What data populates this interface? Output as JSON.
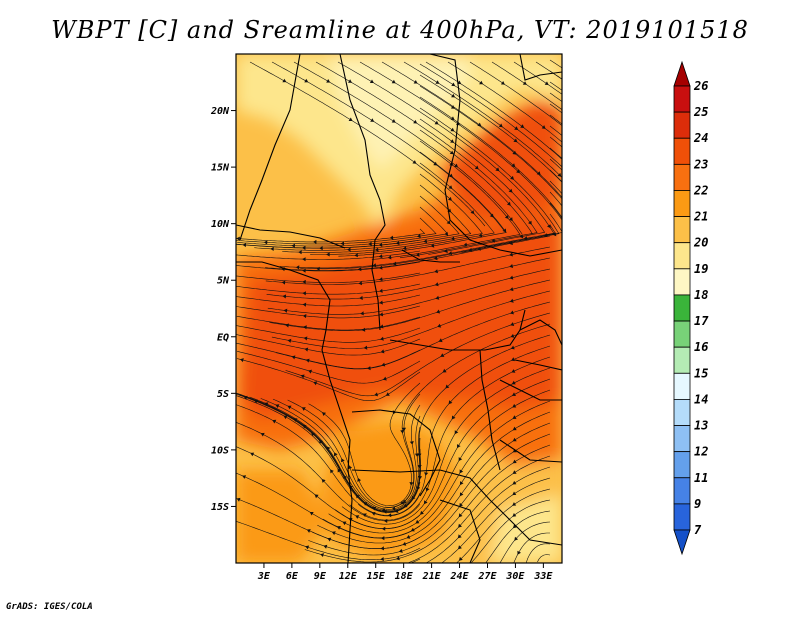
{
  "title": "WBPT [C] and Sreamline at 400hPa, VT: 2019101518",
  "credit": "GrADS: IGES/COLA",
  "map": {
    "lat_labels": [
      "20N",
      "15N",
      "10N",
      "5N",
      "EQ",
      "5S",
      "10S",
      "15S"
    ],
    "lat_values": [
      20,
      15,
      10,
      5,
      0,
      -5,
      -10,
      -15
    ],
    "lon_labels": [
      "3E",
      "6E",
      "9E",
      "12E",
      "15E",
      "18E",
      "21E",
      "24E",
      "27E",
      "30E",
      "33E"
    ],
    "lon_values": [
      3,
      6,
      9,
      12,
      15,
      18,
      21,
      24,
      27,
      30,
      33
    ],
    "lon_range": [
      0,
      35
    ],
    "lat_range": [
      -20,
      25
    ]
  },
  "colorbar": {
    "labels": [
      "26",
      "25",
      "24",
      "23",
      "22",
      "21",
      "20",
      "19",
      "18",
      "17",
      "16",
      "15",
      "14",
      "13",
      "12",
      "11",
      "9",
      "7"
    ],
    "colors": [
      "#a50000",
      "#c80f0f",
      "#dc2d0a",
      "#f05008",
      "#f87010",
      "#fb9a14",
      "#fcc048",
      "#fde68c",
      "#fef7c4",
      "#3ab43a",
      "#78d278",
      "#b4ecb4",
      "#e6f8ff",
      "#b4dcfa",
      "#8ec0f4",
      "#64a0ec",
      "#4682e6",
      "#2864dc",
      "#1450c8"
    ]
  },
  "colors": {
    "deep_orange": "#f05008",
    "orange": "#f87010",
    "light_orange": "#fb9a14",
    "pale": "#fcc048",
    "yellow": "#fde68c"
  }
}
